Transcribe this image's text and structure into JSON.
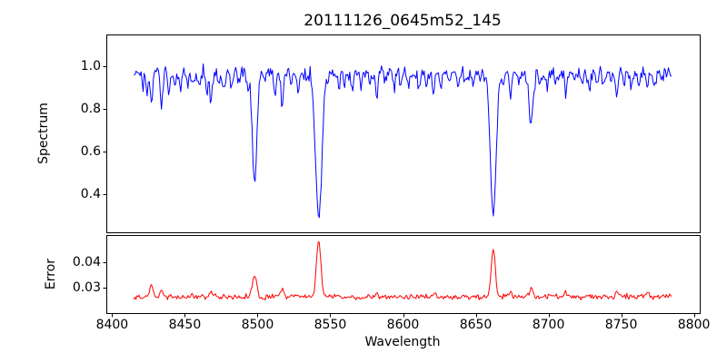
{
  "figure": {
    "title": "20111126_0645m52_145",
    "xlabel": "Wavelength",
    "background_color": "#ffffff",
    "frame_color": "#000000",
    "grid": false,
    "legend": "none"
  },
  "chart_data": [
    {
      "type": "line",
      "name": "spectrum",
      "ylabel": "Spectrum",
      "color": "#0000ff",
      "xlim": [
        8396,
        8804
      ],
      "ylim": [
        0.22,
        1.15
      ],
      "xticks": [
        8400,
        8450,
        8500,
        8550,
        8600,
        8650,
        8700,
        8750,
        8800
      ],
      "yticks": [
        0.4,
        0.6,
        0.8,
        1.0
      ],
      "ytick_labels": [
        "0.4",
        "0.6",
        "0.8",
        "1.0"
      ],
      "x_start": 8415,
      "x_end": 8785,
      "x_step": 0.7,
      "continuum": 0.972,
      "noise_sigma": 0.017,
      "major_absorption_lines": [
        {
          "center": 8498,
          "core": 0.46,
          "sigma": 1.6
        },
        {
          "center": 8542,
          "core": 0.29,
          "sigma": 2.2
        },
        {
          "center": 8662,
          "core": 0.31,
          "sigma": 2.0
        },
        {
          "center": 8688,
          "core": 0.73,
          "sigma": 1.4
        }
      ],
      "minor_absorption_lines": [
        [
          8421,
          0.9
        ],
        [
          8424,
          0.87
        ],
        [
          8427,
          0.83
        ],
        [
          8434,
          0.81
        ],
        [
          8439,
          0.88
        ],
        [
          8443,
          0.9
        ],
        [
          8447,
          0.89
        ],
        [
          8452,
          0.91
        ],
        [
          8456,
          0.9
        ],
        [
          8460,
          0.89
        ],
        [
          8465,
          0.87
        ],
        [
          8468,
          0.84
        ],
        [
          8473,
          0.91
        ],
        [
          8477,
          0.89
        ],
        [
          8482,
          0.91
        ],
        [
          8487,
          0.92
        ],
        [
          8493,
          0.9
        ],
        [
          8505,
          0.93
        ],
        [
          8512,
          0.85
        ],
        [
          8517,
          0.8
        ],
        [
          8523,
          0.91
        ],
        [
          8528,
          0.89
        ],
        [
          8534,
          0.92
        ],
        [
          8548,
          0.93
        ],
        [
          8556,
          0.91
        ],
        [
          8560,
          0.92
        ],
        [
          8565,
          0.9
        ],
        [
          8571,
          0.92
        ],
        [
          8577,
          0.91
        ],
        [
          8582,
          0.86
        ],
        [
          8588,
          0.92
        ],
        [
          8594,
          0.91
        ],
        [
          8598,
          0.9
        ],
        [
          8604,
          0.92
        ],
        [
          8611,
          0.9
        ],
        [
          8616,
          0.92
        ],
        [
          8621,
          0.88
        ],
        [
          8626,
          0.91
        ],
        [
          8632,
          0.92
        ],
        [
          8638,
          0.9
        ],
        [
          8643,
          0.92
        ],
        [
          8648,
          0.9
        ],
        [
          8653,
          0.92
        ],
        [
          8669,
          0.92
        ],
        [
          8674,
          0.86
        ],
        [
          8680,
          0.91
        ],
        [
          8694,
          0.92
        ],
        [
          8699,
          0.9
        ],
        [
          8705,
          0.92
        ],
        [
          8712,
          0.88
        ],
        [
          8718,
          0.91
        ],
        [
          8723,
          0.92
        ],
        [
          8728,
          0.9
        ],
        [
          8733,
          0.92
        ],
        [
          8738,
          0.9
        ],
        [
          8743,
          0.92
        ],
        [
          8747,
          0.87
        ],
        [
          8752,
          0.91
        ],
        [
          8757,
          0.9
        ],
        [
          8762,
          0.92
        ],
        [
          8768,
          0.91
        ],
        [
          8773,
          0.92
        ],
        [
          8778,
          0.93
        ]
      ]
    },
    {
      "type": "line",
      "name": "error",
      "ylabel": "Error",
      "color": "#ff0000",
      "xlim": [
        8396,
        8804
      ],
      "ylim": [
        0.0203,
        0.0503
      ],
      "yticks": [
        0.03,
        0.04
      ],
      "ytick_labels": [
        "0.03",
        "0.04"
      ],
      "baseline": 0.0265,
      "noise_sigma": 0.0005,
      "peaks": [
        {
          "center": 8498,
          "amp": 0.0085,
          "sigma": 1.4
        },
        {
          "center": 8542,
          "amp": 0.0215,
          "sigma": 1.5
        },
        {
          "center": 8662,
          "amp": 0.0185,
          "sigma": 1.4
        },
        {
          "center": 8688,
          "amp": 0.003,
          "sigma": 1.2
        }
      ],
      "minor_bumps": [
        [
          8427,
          0.005
        ],
        [
          8434,
          0.003
        ],
        [
          8468,
          0.0025
        ],
        [
          8517,
          0.003
        ],
        [
          8582,
          0.002
        ],
        [
          8621,
          0.002
        ],
        [
          8674,
          0.002
        ],
        [
          8712,
          0.002
        ],
        [
          8747,
          0.002
        ],
        [
          8768,
          0.0015
        ]
      ]
    }
  ]
}
